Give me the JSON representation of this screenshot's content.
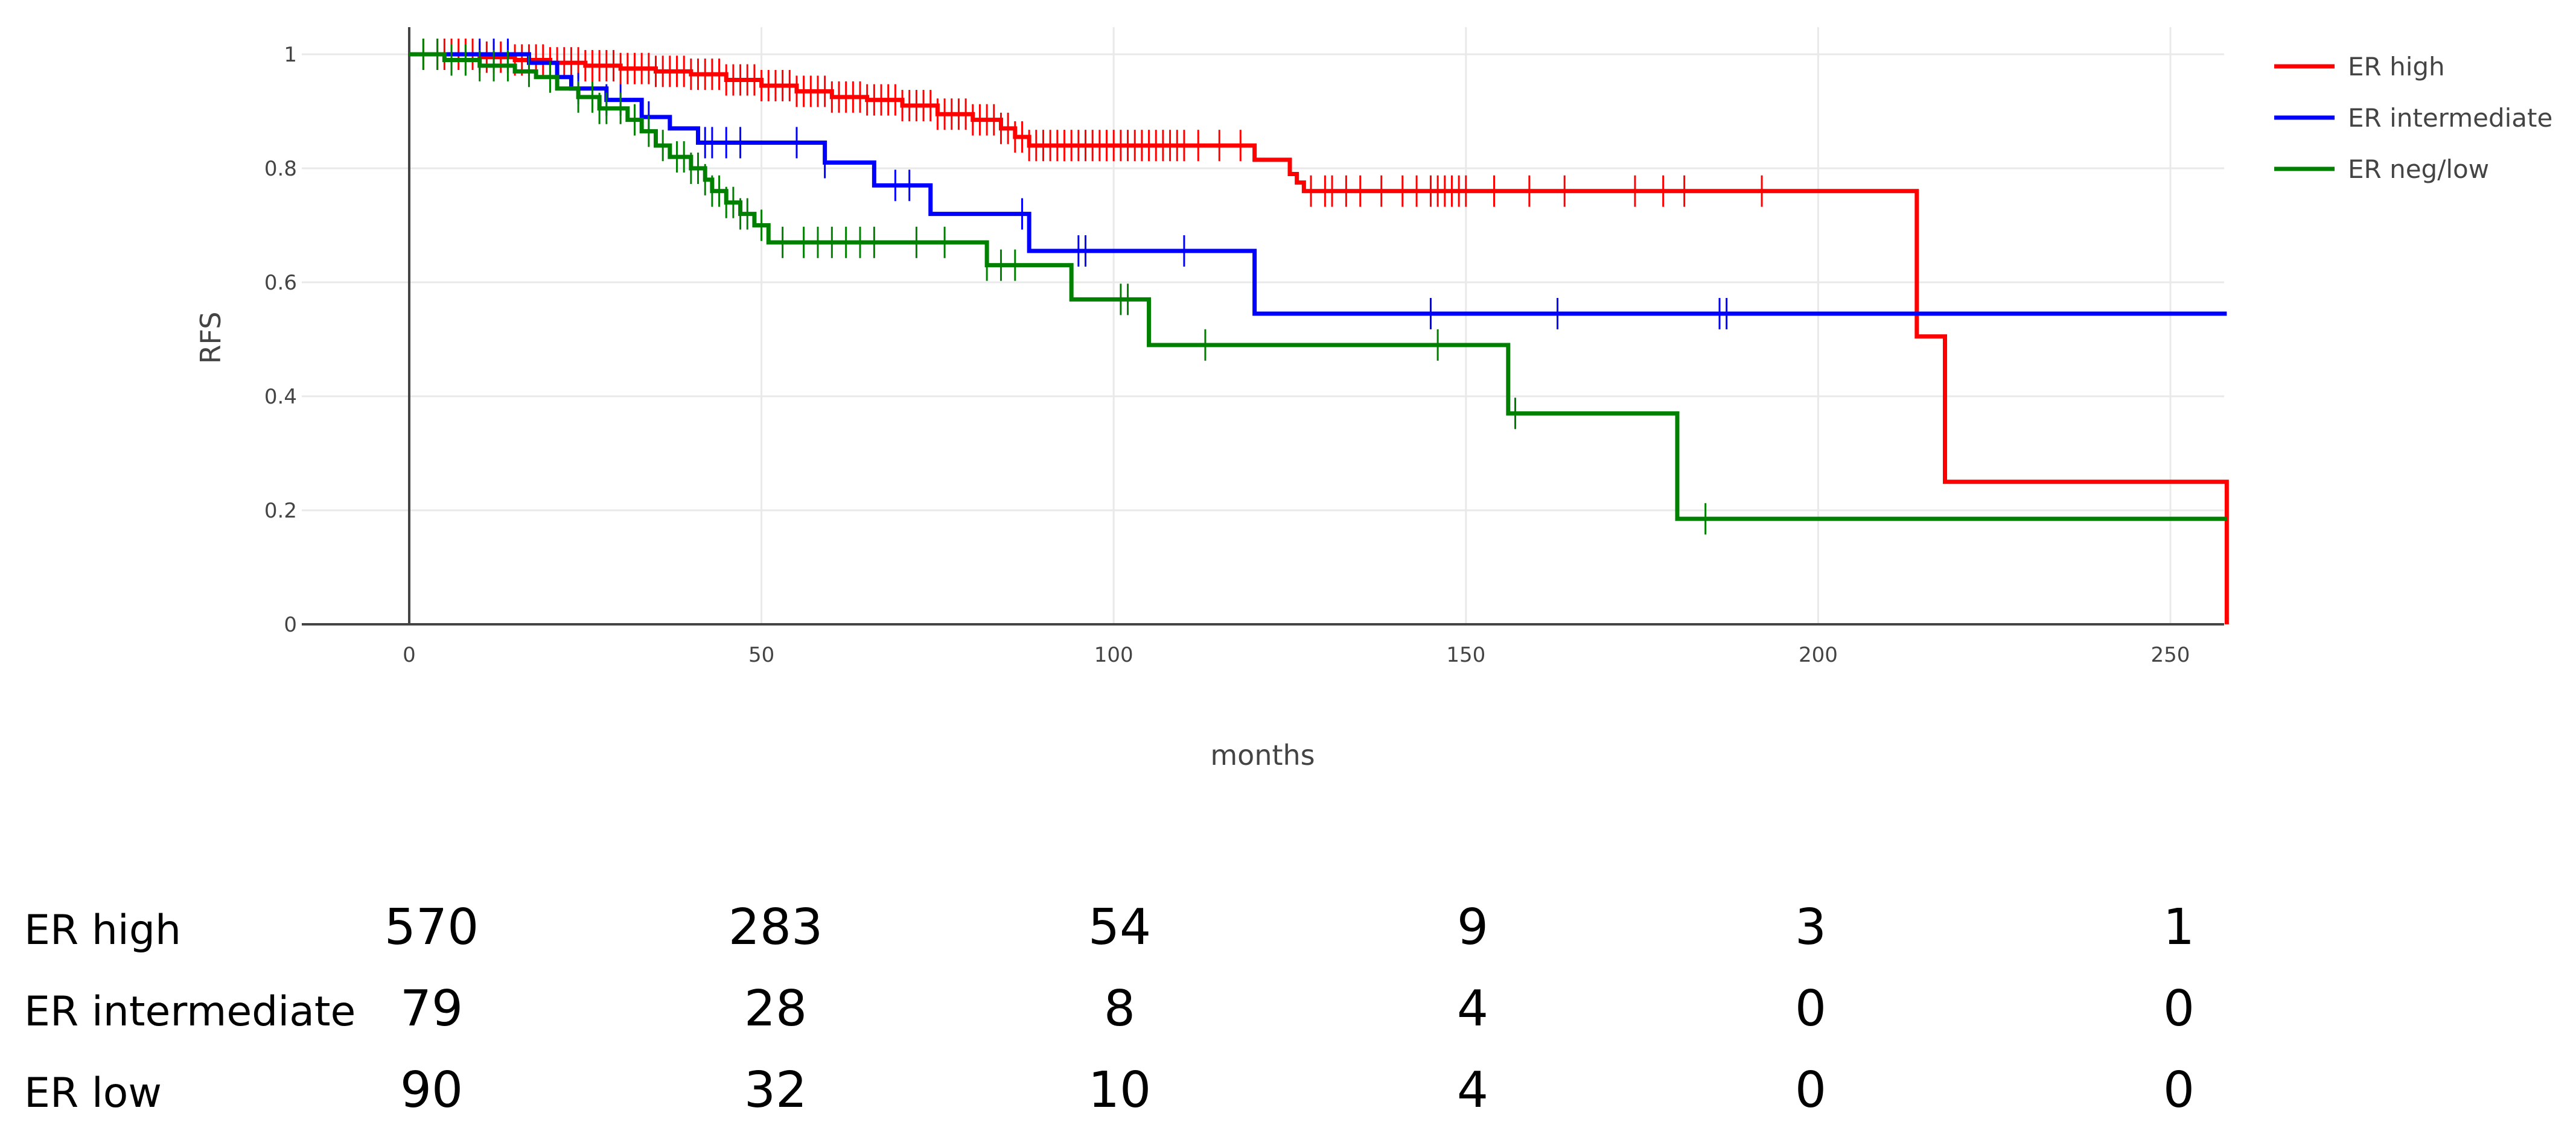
{
  "chart_data": {
    "type": "line",
    "title": "",
    "xlabel": "months",
    "ylabel": "RFS",
    "xlim": [
      -15,
      258
    ],
    "ylim": [
      0,
      1.03
    ],
    "x_ticks": [
      0,
      50,
      100,
      150,
      200,
      250
    ],
    "y_ticks": [
      0,
      0.2,
      0.4,
      0.6,
      0.8,
      1
    ],
    "y_tick_labels": [
      "0",
      "0.2",
      "0.4",
      "0.6",
      "0.8",
      "1"
    ],
    "grid": true,
    "legend_position": "top-right",
    "series": [
      {
        "name": "ER high",
        "color": "#ff0000",
        "steps": [
          [
            0,
            1
          ],
          [
            10,
            0.995
          ],
          [
            15,
            0.99
          ],
          [
            20,
            0.985
          ],
          [
            25,
            0.98
          ],
          [
            30,
            0.975
          ],
          [
            35,
            0.97
          ],
          [
            40,
            0.965
          ],
          [
            45,
            0.955
          ],
          [
            50,
            0.945
          ],
          [
            55,
            0.935
          ],
          [
            60,
            0.925
          ],
          [
            65,
            0.92
          ],
          [
            70,
            0.91
          ],
          [
            75,
            0.895
          ],
          [
            80,
            0.885
          ],
          [
            84,
            0.87
          ],
          [
            86,
            0.855
          ],
          [
            88,
            0.84
          ],
          [
            120,
            0.815
          ],
          [
            125,
            0.79
          ],
          [
            126,
            0.775
          ],
          [
            127,
            0.76
          ],
          [
            214,
            0.505
          ],
          [
            218,
            0.25
          ],
          [
            258,
            0
          ]
        ],
        "censors": [
          2,
          4,
          5,
          6,
          7,
          8,
          9,
          10,
          11,
          12,
          13,
          14,
          15,
          16,
          17,
          18,
          19,
          20,
          21,
          22,
          23,
          24,
          25,
          26,
          27,
          28,
          29,
          30,
          31,
          32,
          33,
          34,
          35,
          36,
          37,
          38,
          39,
          40,
          41,
          42,
          43,
          44,
          45,
          46,
          47,
          48,
          49,
          50,
          51,
          52,
          53,
          54,
          55,
          56,
          57,
          58,
          59,
          60,
          61,
          62,
          63,
          64,
          65,
          66,
          67,
          68,
          69,
          70,
          71,
          72,
          73,
          74,
          75,
          76,
          77,
          78,
          79,
          80,
          81,
          82,
          83,
          84,
          85,
          86,
          87,
          88,
          89,
          90,
          91,
          92,
          93,
          94,
          95,
          96,
          97,
          98,
          99,
          100,
          101,
          102,
          103,
          104,
          105,
          106,
          107,
          108,
          109,
          110,
          112,
          115,
          118,
          128,
          130,
          131,
          133,
          135,
          138,
          141,
          143,
          145,
          146,
          147,
          148,
          149,
          150,
          154,
          159,
          164,
          174,
          178,
          181,
          192
        ]
      },
      {
        "name": "ER intermediate",
        "color": "#0000ff",
        "steps": [
          [
            0,
            1
          ],
          [
            17,
            0.985
          ],
          [
            21,
            0.96
          ],
          [
            23,
            0.94
          ],
          [
            28,
            0.92
          ],
          [
            33,
            0.89
          ],
          [
            37,
            0.87
          ],
          [
            41,
            0.845
          ],
          [
            59,
            0.81
          ],
          [
            66,
            0.77
          ],
          [
            74,
            0.72
          ],
          [
            88,
            0.655
          ],
          [
            120,
            0.545
          ],
          [
            258,
            0.545
          ]
        ],
        "censors": [
          10,
          12,
          14,
          24,
          28,
          30,
          34,
          42,
          43,
          45,
          47,
          55,
          59,
          69,
          71,
          87,
          95,
          96,
          110,
          145,
          163,
          186,
          187
        ]
      },
      {
        "name": "ER neg/low",
        "color": "#008000",
        "steps": [
          [
            0,
            1
          ],
          [
            5,
            0.99
          ],
          [
            10,
            0.98
          ],
          [
            15,
            0.97
          ],
          [
            18,
            0.96
          ],
          [
            21,
            0.94
          ],
          [
            24,
            0.925
          ],
          [
            27,
            0.905
          ],
          [
            31,
            0.885
          ],
          [
            33,
            0.865
          ],
          [
            35,
            0.84
          ],
          [
            37,
            0.82
          ],
          [
            40,
            0.8
          ],
          [
            42,
            0.78
          ],
          [
            43,
            0.76
          ],
          [
            45,
            0.74
          ],
          [
            47,
            0.72
          ],
          [
            49,
            0.7
          ],
          [
            51,
            0.67
          ],
          [
            82,
            0.63
          ],
          [
            94,
            0.57
          ],
          [
            105,
            0.49
          ],
          [
            156,
            0.37
          ],
          [
            180,
            0.185
          ],
          [
            258,
            0.185
          ]
        ],
        "censors": [
          2,
          4,
          6,
          8,
          10,
          12,
          14,
          17,
          20,
          24,
          26,
          27,
          28,
          30,
          32,
          34,
          36,
          38,
          39,
          40,
          41,
          42,
          43,
          44,
          45,
          46,
          47,
          48,
          50,
          53,
          56,
          58,
          60,
          62,
          64,
          66,
          72,
          76,
          82,
          84,
          86,
          101,
          102,
          113,
          146,
          157,
          184
        ]
      }
    ],
    "risk_table": {
      "times": [
        0,
        50,
        100,
        150,
        200,
        250
      ],
      "rows": [
        {
          "label": "ER high",
          "counts": [
            "570",
            "283",
            "54",
            "9",
            "3",
            "1"
          ]
        },
        {
          "label": "ER intermediate",
          "counts": [
            "79",
            "28",
            "8",
            "4",
            "0",
            "0"
          ]
        },
        {
          "label": "ER low",
          "counts": [
            "90",
            "32",
            "10",
            "4",
            "0",
            "0"
          ]
        }
      ]
    }
  }
}
